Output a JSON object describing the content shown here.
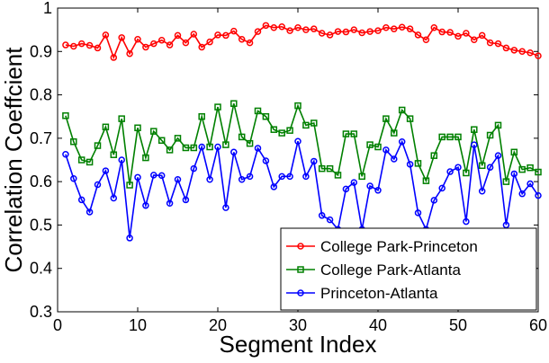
{
  "chart_data": {
    "type": "line",
    "xlabel": "Segment Index",
    "ylabel": "Correlation Coeffcient",
    "xlim": [
      0,
      60
    ],
    "ylim": [
      0.3,
      1.0
    ],
    "xticks": [
      "0",
      "10",
      "20",
      "30",
      "40",
      "50",
      "60"
    ],
    "yticks": [
      "0.3",
      "0.4",
      "0.5",
      "0.6",
      "0.7",
      "0.8",
      "0.9",
      "1"
    ],
    "legend_position": "bottom-right",
    "x": [
      1,
      2,
      3,
      4,
      5,
      6,
      7,
      8,
      9,
      10,
      11,
      12,
      13,
      14,
      15,
      16,
      17,
      18,
      19,
      20,
      21,
      22,
      23,
      24,
      25,
      26,
      27,
      28,
      29,
      30,
      31,
      32,
      33,
      34,
      35,
      36,
      37,
      38,
      39,
      40,
      41,
      42,
      43,
      44,
      45,
      46,
      47,
      48,
      49,
      50,
      51,
      52,
      53,
      54,
      55,
      56,
      57,
      58,
      59,
      60
    ],
    "series": [
      {
        "name": "College Park-Princeton",
        "color": "#ff0000",
        "marker": "circle",
        "values": [
          0.915,
          0.912,
          0.918,
          0.914,
          0.908,
          0.938,
          0.886,
          0.932,
          0.895,
          0.928,
          0.91,
          0.918,
          0.926,
          0.915,
          0.937,
          0.92,
          0.94,
          0.91,
          0.922,
          0.938,
          0.937,
          0.947,
          0.928,
          0.92,
          0.946,
          0.96,
          0.955,
          0.957,
          0.948,
          0.955,
          0.95,
          0.952,
          0.942,
          0.938,
          0.946,
          0.945,
          0.95,
          0.943,
          0.946,
          0.948,
          0.955,
          0.952,
          0.956,
          0.952,
          0.938,
          0.927,
          0.955,
          0.945,
          0.944,
          0.935,
          0.942,
          0.927,
          0.937,
          0.92,
          0.918,
          0.908,
          0.903,
          0.9,
          0.897,
          0.89
        ]
      },
      {
        "name": "College Park-Atlanta",
        "color": "#008000",
        "marker": "square",
        "values": [
          0.752,
          0.692,
          0.65,
          0.645,
          0.683,
          0.726,
          0.662,
          0.745,
          0.592,
          0.724,
          0.655,
          0.716,
          0.695,
          0.673,
          0.7,
          0.678,
          0.678,
          0.75,
          0.68,
          0.772,
          0.685,
          0.78,
          0.703,
          0.688,
          0.763,
          0.75,
          0.72,
          0.712,
          0.718,
          0.775,
          0.73,
          0.735,
          0.63,
          0.63,
          0.615,
          0.71,
          0.71,
          0.612,
          0.685,
          0.68,
          0.745,
          0.712,
          0.765,
          0.745,
          0.642,
          0.602,
          0.66,
          0.703,
          0.703,
          0.703,
          0.62,
          0.72,
          0.637,
          0.707,
          0.73,
          0.6,
          0.668,
          0.628,
          0.632,
          0.622
        ]
      },
      {
        "name": "Princeton-Atlanta",
        "color": "#0000ff",
        "marker": "circle",
        "values": [
          0.663,
          0.607,
          0.558,
          0.53,
          0.593,
          0.625,
          0.562,
          0.65,
          0.47,
          0.61,
          0.545,
          0.615,
          0.614,
          0.55,
          0.605,
          0.558,
          0.63,
          0.68,
          0.605,
          0.68,
          0.54,
          0.668,
          0.605,
          0.612,
          0.677,
          0.648,
          0.588,
          0.612,
          0.612,
          0.693,
          0.612,
          0.647,
          0.522,
          0.512,
          0.49,
          0.583,
          0.598,
          0.49,
          0.59,
          0.58,
          0.673,
          0.652,
          0.692,
          0.64,
          0.528,
          0.49,
          0.557,
          0.585,
          0.623,
          0.633,
          0.508,
          0.685,
          0.578,
          0.633,
          0.66,
          0.5,
          0.618,
          0.572,
          0.595,
          0.568
        ]
      }
    ]
  }
}
